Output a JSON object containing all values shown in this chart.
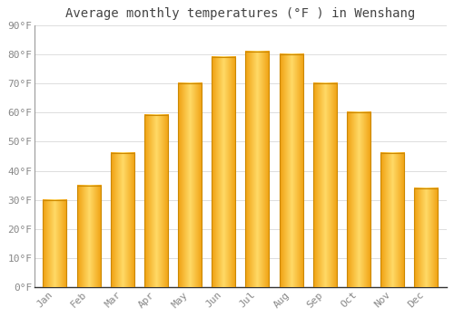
{
  "title": "Average monthly temperatures (°F ) in Wenshang",
  "months": [
    "Jan",
    "Feb",
    "Mar",
    "Apr",
    "May",
    "Jun",
    "Jul",
    "Aug",
    "Sep",
    "Oct",
    "Nov",
    "Dec"
  ],
  "values": [
    30,
    35,
    46,
    59,
    70,
    79,
    81,
    80,
    70,
    60,
    46,
    34
  ],
  "bar_color_center": "#FFD966",
  "bar_color_edge": "#F0A010",
  "bar_edge_color": "#CC8800",
  "background_color": "#FFFFFF",
  "plot_bg_color": "#FFFFFF",
  "grid_color": "#DDDDDD",
  "text_color": "#888888",
  "title_color": "#444444",
  "spine_color": "#999999",
  "ylim": [
    0,
    90
  ],
  "yticks": [
    0,
    10,
    20,
    30,
    40,
    50,
    60,
    70,
    80,
    90
  ],
  "ytick_labels": [
    "0°F",
    "10°F",
    "20°F",
    "30°F",
    "40°F",
    "50°F",
    "60°F",
    "70°F",
    "80°F",
    "90°F"
  ],
  "title_fontsize": 10,
  "tick_fontsize": 8,
  "bar_width": 0.7,
  "figsize": [
    5.0,
    3.5
  ],
  "dpi": 100
}
